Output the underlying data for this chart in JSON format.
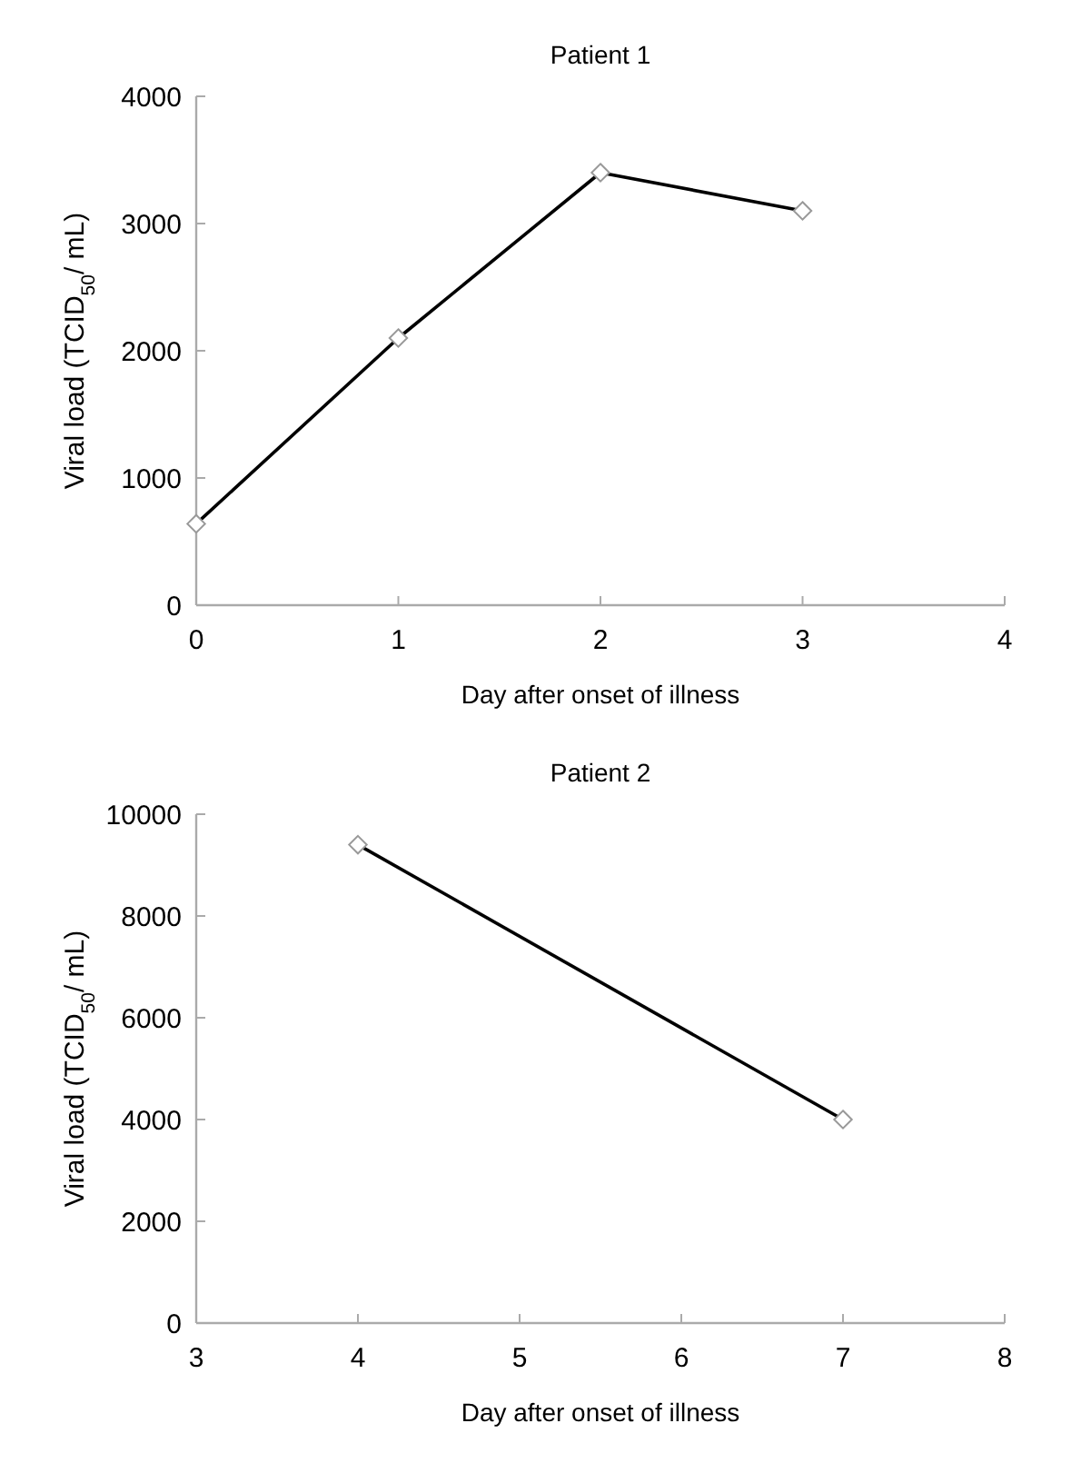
{
  "chart_data": [
    {
      "type": "line",
      "title": "Patient 1",
      "xlabel": "Day after onset of illness",
      "ylabel": "Viral load (TCID$_{50}$/ mL)",
      "x": [
        0,
        1,
        2,
        3
      ],
      "series": [
        {
          "color": "#000000",
          "values": [
            640,
            2100,
            3400,
            3100
          ]
        }
      ],
      "xlim": [
        0,
        4
      ],
      "xticks": [
        0,
        1,
        2,
        3,
        4
      ],
      "ylim": [
        0,
        4000
      ],
      "yticks": [
        0,
        1000,
        2000,
        3000,
        4000
      ],
      "grid": false,
      "marker": "diamond",
      "line_style": "solid"
    },
    {
      "type": "line",
      "title": "Patient 2",
      "xlabel": "Day after onset of illness",
      "ylabel": "Viral load (TCID$_{50}$/ mL)",
      "x": [
        4,
        7
      ],
      "series": [
        {
          "color": "#000000",
          "values": [
            9400,
            4000
          ]
        }
      ],
      "xlim": [
        3,
        8
      ],
      "xticks": [
        3,
        4,
        5,
        6,
        7,
        8
      ],
      "ylim": [
        0,
        10000
      ],
      "yticks": [
        0,
        2000,
        4000,
        6000,
        8000,
        10000
      ],
      "grid": false,
      "marker": "diamond",
      "line_style": "solid"
    }
  ]
}
